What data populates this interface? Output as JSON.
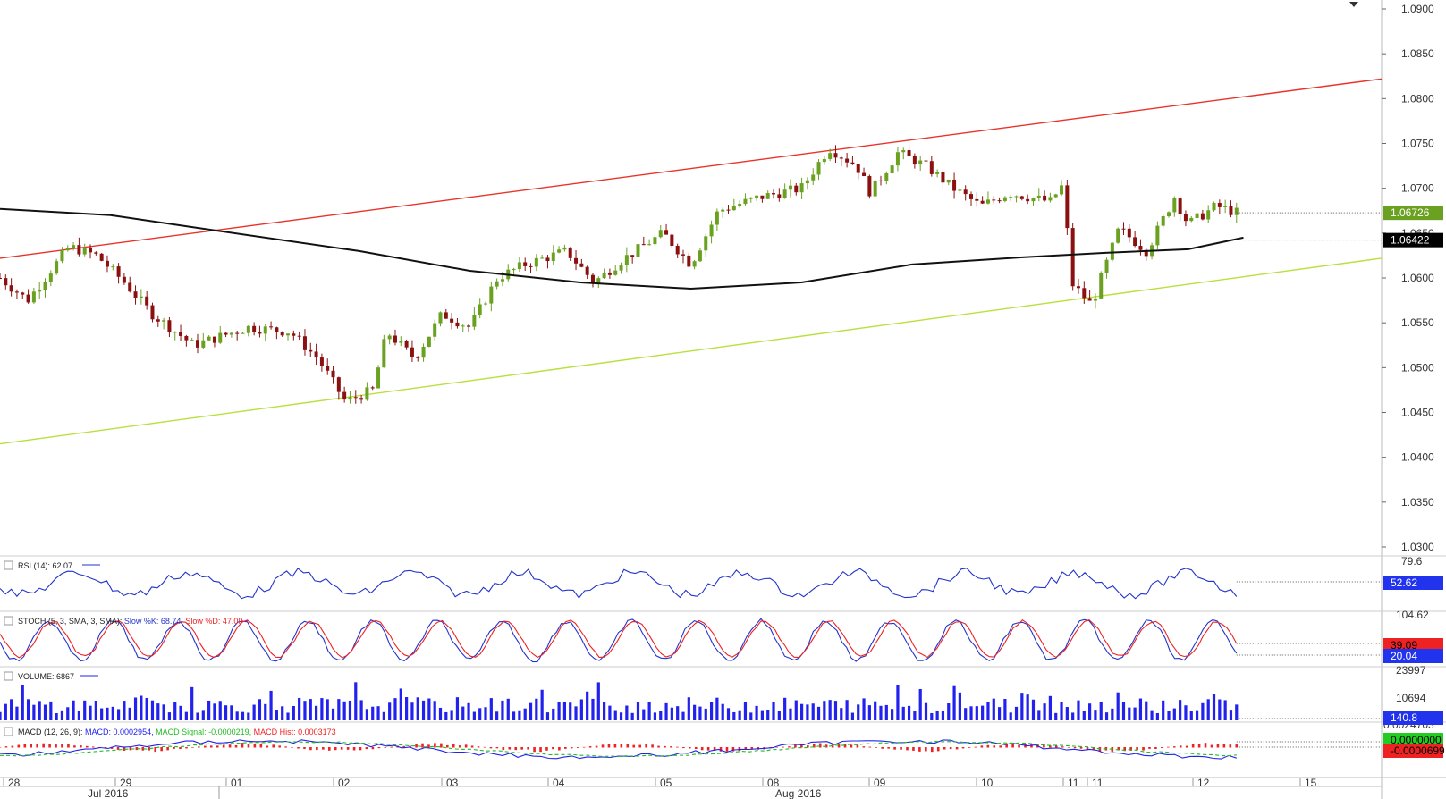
{
  "colors": {
    "bull": "#6aa121",
    "bear": "#8b1010",
    "ma": "#111111",
    "trend_upper": "#e8332a",
    "trend_lower": "#b9e03c",
    "rsi": "#2233cc",
    "stoch_k": "#2233cc",
    "stoch_d": "#ee2222",
    "volume": "#2222ee",
    "macd": "#2222ee",
    "macd_signal": "#22bb22",
    "macd_hist": "#ee2222",
    "tag_last": "#6aa121",
    "tag_ma": "#000000",
    "tag_blue": "#2233ee",
    "tag_red": "#ee2222",
    "tag_green": "#22cc22"
  },
  "price_axis": {
    "ticks": [
      "1.0900",
      "1.0850",
      "1.0800",
      "1.0750",
      "1.0700",
      "1.0650",
      "1.0600",
      "1.0550",
      "1.0500",
      "1.0450",
      "1.0400",
      "1.0350",
      "1.0300"
    ],
    "last_price_tag": "1.06726",
    "ma_tag": "1.06422"
  },
  "time_axis": {
    "day_labels": [
      "28",
      "29",
      "01",
      "02",
      "03",
      "04",
      "05",
      "08",
      "09",
      "10",
      "11",
      "11",
      "12",
      "15"
    ],
    "month_labels": [
      "Jul 2016",
      "Aug 2016"
    ]
  },
  "indicators": {
    "rsi": {
      "label": "RSI (14): 62.07",
      "top_tick": "79.6",
      "value_tag": "52.62"
    },
    "stoch": {
      "label_prefix": "STOCH (5, 3, SMA, 3, SMA):",
      "k_label": "Slow %K: 68.74,",
      "d_label": "Slow %D: 47.09",
      "top_tick": "104.62",
      "tag_d": "39.09",
      "tag_k": "20.04"
    },
    "volume": {
      "label": "VOLUME: 6867",
      "ticks": [
        "23997",
        "10694"
      ],
      "value_tag": "140.8"
    },
    "macd": {
      "label_prefix": "MACD (12, 26, 9):",
      "macd_label": "MACD: 0.0002954,",
      "signal_label": "MACD Signal: -0.0000219,",
      "hist_label": "MACD Hist: 0.0003173",
      "top_tick": "0.0024703",
      "tag_green": "0.0000000",
      "tag_red": "-0.0000699"
    }
  },
  "chart_data": {
    "type": "candlestick",
    "symbol_note": "",
    "y_range": [
      1.03,
      1.09
    ],
    "trendlines": [
      {
        "color": "upper",
        "from": [
          0,
          1.0622
        ],
        "to": [
          1,
          1.0822
        ]
      },
      {
        "color": "lower",
        "from": [
          0,
          1.0415
        ],
        "to": [
          1,
          1.0622
        ]
      }
    ],
    "moving_average": [
      [
        0,
        1.0677
      ],
      [
        0.08,
        1.067
      ],
      [
        0.16,
        1.0652
      ],
      [
        0.26,
        1.063
      ],
      [
        0.34,
        1.0608
      ],
      [
        0.42,
        1.0595
      ],
      [
        0.5,
        1.0588
      ],
      [
        0.58,
        1.0595
      ],
      [
        0.66,
        1.0615
      ],
      [
        0.74,
        1.0623
      ],
      [
        0.8,
        1.0628
      ],
      [
        0.86,
        1.0632
      ],
      [
        0.9,
        1.0645
      ]
    ],
    "price_path": [
      [
        0,
        1.06
      ],
      [
        0.02,
        1.0575
      ],
      [
        0.05,
        1.0635
      ],
      [
        0.07,
        1.0625
      ],
      [
        0.09,
        1.0595
      ],
      [
        0.11,
        1.056
      ],
      [
        0.14,
        1.0525
      ],
      [
        0.18,
        1.0545
      ],
      [
        0.21,
        1.054
      ],
      [
        0.23,
        1.051
      ],
      [
        0.25,
        1.0462
      ],
      [
        0.27,
        1.0475
      ],
      [
        0.28,
        1.054
      ],
      [
        0.3,
        1.051
      ],
      [
        0.32,
        1.056
      ],
      [
        0.34,
        1.0545
      ],
      [
        0.36,
        1.06
      ],
      [
        0.38,
        1.0615
      ],
      [
        0.41,
        1.063
      ],
      [
        0.43,
        1.0595
      ],
      [
        0.45,
        1.062
      ],
      [
        0.48,
        1.065
      ],
      [
        0.5,
        1.0615
      ],
      [
        0.52,
        1.0675
      ],
      [
        0.55,
        1.069
      ],
      [
        0.58,
        1.07
      ],
      [
        0.6,
        1.0745
      ],
      [
        0.62,
        1.0725
      ],
      [
        0.63,
        1.0695
      ],
      [
        0.65,
        1.074
      ],
      [
        0.67,
        1.0725
      ],
      [
        0.69,
        1.07
      ],
      [
        0.71,
        1.068
      ],
      [
        0.73,
        1.0695
      ],
      [
        0.76,
        1.0685
      ],
      [
        0.77,
        1.0705
      ],
      [
        0.775,
        1.0595
      ],
      [
        0.79,
        1.057
      ],
      [
        0.81,
        1.0655
      ],
      [
        0.83,
        1.063
      ],
      [
        0.85,
        1.069
      ],
      [
        0.86,
        1.066
      ],
      [
        0.88,
        1.068
      ],
      [
        0.895,
        1.0673
      ]
    ]
  }
}
